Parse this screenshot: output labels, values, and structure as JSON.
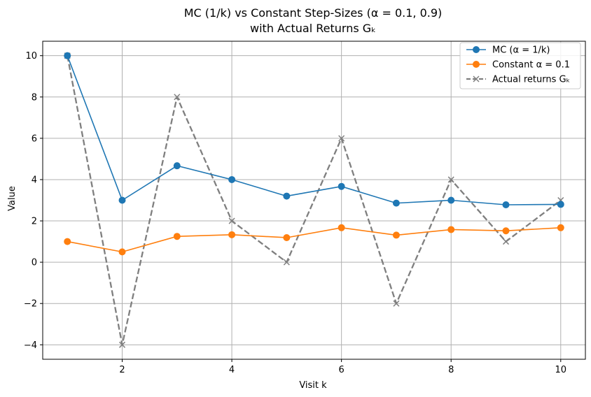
{
  "chart_data": {
    "type": "line",
    "title_line1": "MC (1/k) vs Constant Step-Sizes (α = 0.1, 0.9)",
    "title_line2": "with Actual Returns Gₖ",
    "xlabel": "Visit k",
    "ylabel": "Value",
    "xlim": [
      0.55,
      10.45
    ],
    "ylim": [
      -4.7,
      10.7
    ],
    "grid": true,
    "legend_position": "top-right",
    "x_ticks": [
      2,
      4,
      6,
      8,
      10
    ],
    "x_tick_labels": [
      "2",
      "4",
      "6",
      "8",
      "10"
    ],
    "y_ticks": [
      -4,
      -2,
      0,
      2,
      4,
      6,
      8,
      10
    ],
    "y_tick_labels": [
      "−4",
      "−2",
      "0",
      "2",
      "4",
      "6",
      "8",
      "10"
    ],
    "x": [
      1,
      2,
      3,
      4,
      5,
      6,
      7,
      8,
      9,
      10
    ],
    "series": [
      {
        "name": "MC (α = 1/k)",
        "color": "#1f77b4",
        "marker": "circle",
        "linestyle": "solid",
        "values": [
          10,
          3,
          4.67,
          4,
          3.2,
          3.67,
          2.86,
          3.0,
          2.78,
          2.8
        ]
      },
      {
        "name": "Constant α = 0.1",
        "color": "#ff7f0e",
        "marker": "circle",
        "linestyle": "solid",
        "values": [
          1.0,
          0.5,
          1.25,
          1.33,
          1.19,
          1.67,
          1.31,
          1.58,
          1.52,
          1.67
        ]
      },
      {
        "name": "Actual returns Gₖ",
        "color": "#7f7f7f",
        "marker": "x",
        "linestyle": "dashed",
        "values": [
          10,
          -4,
          8,
          2,
          0,
          6,
          -2,
          4,
          1,
          3
        ]
      }
    ]
  }
}
